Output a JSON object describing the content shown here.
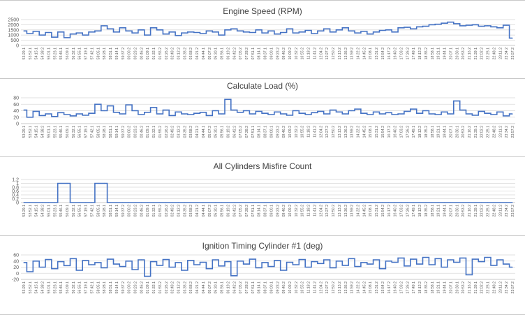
{
  "chart_data": [
    {
      "type": "line",
      "title": "Engine Speed (RPM)",
      "ylim": [
        0,
        2500
      ],
      "yticks": [
        "0",
        "500",
        "1000",
        "1500",
        "2000",
        "2500"
      ],
      "color": "#4472c4",
      "grid": true,
      "x": [
        "53:29.1",
        "53:52.1",
        "54:15.1",
        "54:38.2",
        "55:01.1",
        "55:23.1",
        "55:46.1",
        "56:09.1",
        "56:32.1",
        "56:55.1",
        "57:19.1",
        "57:42.1",
        "58:05.1",
        "58:28.1",
        "58:51.1",
        "59:14.1",
        "59:37.2",
        "00:00.2",
        "00:23.2",
        "00:46.2",
        "01:09.1",
        "01:32.1",
        "01:55.2",
        "02:26.2",
        "02:49.2",
        "03:12.2",
        "03:35.2",
        "03:58.2",
        "04:21.2",
        "04:44.1",
        "05:07.2",
        "05:30.1",
        "05:56.1",
        "06:19.2",
        "06:42.2",
        "07:05.2",
        "07:28.2",
        "07:51.1",
        "08:14.1",
        "08:37.1",
        "09:00.1",
        "09:23.2",
        "09:46.2",
        "10:09.2",
        "10:32.2",
        "10:55.2",
        "11:18.2",
        "11:41.2",
        "12:04.2",
        "12:27.2",
        "12:50.2",
        "13:13.2",
        "13:36.2",
        "13:59.2",
        "14:22.2",
        "14:45.2",
        "15:08.1",
        "15:31.2",
        "15:54.2",
        "16:17.2",
        "16:40.2",
        "17:03.2",
        "17:26.2",
        "17:49.1",
        "18:12.2",
        "18:35.2",
        "18:58.1",
        "19:21.1",
        "19:44.1",
        "20:07.1",
        "20:30.1",
        "20:53.2",
        "21:16.2",
        "21:39.1",
        "22:02.2",
        "22:25.1",
        "22:48.2",
        "23:11.2",
        "23:34.2",
        "23:57.2"
      ],
      "values": [
        1400,
        1150,
        1350,
        1000,
        1250,
        800,
        1300,
        750,
        1100,
        1200,
        1000,
        1300,
        1400,
        1900,
        1600,
        1300,
        1700,
        1400,
        1200,
        1500,
        1000,
        1700,
        1500,
        1100,
        1300,
        950,
        1200,
        1300,
        1250,
        1150,
        1400,
        1300,
        1000,
        1500,
        1600,
        1400,
        1300,
        1250,
        1500,
        1200,
        1400,
        1100,
        1250,
        1600,
        1200,
        1300,
        1450,
        1150,
        1400,
        1600,
        1300,
        1500,
        1700,
        1400,
        1200,
        1350,
        1100,
        1300,
        1450,
        1500,
        1300,
        1700,
        1750,
        1600,
        1800,
        1850,
        2000,
        2050,
        2150,
        2250,
        2100,
        1900,
        1950,
        2000,
        1850,
        1900,
        1800,
        1700,
        1950,
        700
      ]
    },
    {
      "type": "line",
      "title": "Calculate Load (%)",
      "ylim": [
        0,
        80
      ],
      "yticks": [
        "0",
        "20",
        "40",
        "60",
        "80"
      ],
      "color": "#4472c4",
      "grid": true,
      "x": [
        "53:29.1",
        "53:52.1",
        "54:15.1",
        "54:38.2",
        "55:01.1",
        "55:23.1",
        "55:46.1",
        "56:09.1",
        "56:32.1",
        "56:55.1",
        "57:19.1",
        "57:42.1",
        "58:05.1",
        "58:28.1",
        "58:51.1",
        "59:14.1",
        "59:37.2",
        "00:00.2",
        "00:23.2",
        "00:46.2",
        "01:09.1",
        "01:32.1",
        "01:55.2",
        "02:26.2",
        "02:49.2",
        "03:12.2",
        "03:35.2",
        "03:58.2",
        "04:21.2",
        "04:44.1",
        "05:07.2",
        "05:30.1",
        "05:56.1",
        "06:19.2",
        "06:42.2",
        "07:05.2",
        "07:28.2",
        "07:51.1",
        "08:14.1",
        "08:37.1",
        "09:00.1",
        "09:23.2",
        "09:46.2",
        "10:09.2",
        "10:32.2",
        "10:55.2",
        "11:18.2",
        "11:41.2",
        "12:04.2",
        "12:27.2",
        "12:50.2",
        "13:13.2",
        "13:36.2",
        "13:59.2",
        "14:22.2",
        "14:45.2",
        "15:08.1",
        "15:31.2",
        "15:54.2",
        "16:17.2",
        "16:40.2",
        "17:03.2",
        "17:26.2",
        "17:49.1",
        "18:12.2",
        "18:35.2",
        "18:58.1",
        "19:21.1",
        "19:44.1",
        "20:07.1",
        "20:30.1",
        "20:53.2",
        "21:16.2",
        "21:39.1",
        "22:02.2",
        "22:25.1",
        "22:48.2",
        "23:11.2",
        "23:34.2",
        "23:57.2"
      ],
      "values": [
        42,
        20,
        38,
        25,
        30,
        22,
        34,
        28,
        24,
        30,
        26,
        32,
        60,
        40,
        55,
        35,
        30,
        58,
        40,
        28,
        35,
        50,
        30,
        42,
        25,
        36,
        30,
        28,
        32,
        35,
        25,
        40,
        30,
        75,
        42,
        35,
        40,
        30,
        38,
        32,
        28,
        36,
        30,
        26,
        40,
        32,
        28,
        34,
        38,
        30,
        42,
        36,
        30,
        40,
        45,
        32,
        28,
        36,
        30,
        34,
        28,
        30,
        38,
        45,
        32,
        40,
        30,
        28,
        36,
        30,
        70,
        42,
        30,
        26,
        38,
        32,
        28,
        36,
        24,
        30
      ]
    },
    {
      "type": "line",
      "title": "All Cylinders Misfire Count",
      "ylim": [
        0,
        1.2
      ],
      "yticks": [
        "0",
        "0.2",
        "0.4",
        "0.6",
        "0.8",
        "1",
        "1.2"
      ],
      "color": "#4472c4",
      "grid": true,
      "x": [
        "53:29.1",
        "53:52.1",
        "54:15.1",
        "54:38.2",
        "55:01.1",
        "55:23.1",
        "55:46.1",
        "56:09.1",
        "56:32.1",
        "56:55.1",
        "57:19.1",
        "57:42.1",
        "58:05.1",
        "58:28.1",
        "58:51.1",
        "59:14.1",
        "59:37.2",
        "00:00.2",
        "00:23.2",
        "00:46.2",
        "01:09.1",
        "01:32.1",
        "01:55.2",
        "02:26.2",
        "02:49.2",
        "03:12.2",
        "03:35.2",
        "03:58.2",
        "04:21.2",
        "04:44.1",
        "05:07.2",
        "05:30.1",
        "05:56.1",
        "06:19.2",
        "06:42.2",
        "07:05.2",
        "07:28.2",
        "07:51.1",
        "08:14.1",
        "08:37.1",
        "09:00.1",
        "09:23.2",
        "09:46.2",
        "10:09.2",
        "10:32.2",
        "10:55.2",
        "11:18.2",
        "11:41.2",
        "12:04.2",
        "12:27.2",
        "12:50.2",
        "13:13.2",
        "13:36.2",
        "13:59.2",
        "14:22.2",
        "14:45.2",
        "15:08.1",
        "15:31.2",
        "15:54.2",
        "16:17.2",
        "16:40.2",
        "17:03.2",
        "17:26.2",
        "17:49.1",
        "18:12.2",
        "18:35.2",
        "18:58.1",
        "19:21.1",
        "19:44.1",
        "20:07.1",
        "20:30.1",
        "20:53.2",
        "21:16.2",
        "21:39.1",
        "22:02.2",
        "22:25.1",
        "22:48.2",
        "23:11.2",
        "23:34.2",
        "23:57.2"
      ],
      "values": [
        0,
        0,
        0,
        0,
        0,
        0,
        1,
        1,
        0,
        0,
        0,
        0,
        1,
        1,
        0,
        0,
        0,
        0,
        0,
        0,
        0,
        0,
        0,
        0,
        0,
        0,
        0,
        0,
        0,
        0,
        0,
        0,
        0,
        0,
        0,
        0,
        0,
        0,
        0,
        0,
        0,
        0,
        0,
        0,
        0,
        0,
        0,
        0,
        0,
        0,
        0,
        0,
        0,
        0,
        0,
        0,
        0,
        0,
        0,
        0,
        0,
        0,
        0,
        0,
        0,
        0,
        0,
        0,
        0,
        0,
        0,
        0,
        0,
        0,
        0,
        0,
        0,
        0,
        0,
        0
      ]
    },
    {
      "type": "line",
      "title": "Ignition Timing Cylinder #1 (deg)",
      "ylim": [
        -20,
        60
      ],
      "yticks": [
        "-20",
        "0",
        "20",
        "40",
        "60"
      ],
      "color": "#4472c4",
      "grid": true,
      "x": [
        "53:29.1",
        "53:52.1",
        "54:15.1",
        "54:38.2",
        "55:01.1",
        "55:23.1",
        "55:46.1",
        "56:09.1",
        "56:32.1",
        "56:55.1",
        "57:19.1",
        "57:42.1",
        "58:05.1",
        "58:28.1",
        "58:51.1",
        "59:14.1",
        "59:37.2",
        "00:00.2",
        "00:23.2",
        "00:46.2",
        "01:09.1",
        "01:32.1",
        "01:55.2",
        "02:26.2",
        "02:49.2",
        "03:12.2",
        "03:35.2",
        "03:58.2",
        "04:21.2",
        "04:44.1",
        "05:07.2",
        "05:30.1",
        "05:56.1",
        "06:19.2",
        "06:42.2",
        "07:05.2",
        "07:28.2",
        "07:51.1",
        "08:14.1",
        "08:37.1",
        "09:00.1",
        "09:23.2",
        "09:46.2",
        "10:09.2",
        "10:32.2",
        "10:55.2",
        "11:18.2",
        "11:41.2",
        "12:04.2",
        "12:27.2",
        "12:50.2",
        "13:13.2",
        "13:36.2",
        "13:59.2",
        "14:22.2",
        "14:45.2",
        "15:08.1",
        "15:31.2",
        "15:54.2",
        "16:17.2",
        "16:40.2",
        "17:03.2",
        "17:26.2",
        "17:49.1",
        "18:12.2",
        "18:35.2",
        "18:58.1",
        "19:21.1",
        "19:44.1",
        "20:07.1",
        "20:30.1",
        "20:53.2",
        "21:16.2",
        "21:39.1",
        "22:02.2",
        "22:25.1",
        "22:48.2",
        "23:11.2",
        "23:34.2",
        "23:57.2"
      ],
      "values": [
        35,
        5,
        40,
        20,
        45,
        15,
        38,
        25,
        48,
        10,
        42,
        28,
        35,
        18,
        46,
        30,
        22,
        40,
        12,
        44,
        -10,
        38,
        26,
        45,
        20,
        35,
        10,
        42,
        28,
        36,
        15,
        44,
        24,
        38,
        -8,
        40,
        30,
        46,
        18,
        35,
        22,
        42,
        10,
        36,
        28,
        45,
        20,
        38,
        32,
        44,
        18,
        40,
        26,
        48,
        22,
        35,
        30,
        44,
        15,
        40,
        36,
        50,
        24,
        46,
        30,
        52,
        28,
        48,
        20,
        44,
        36,
        50,
        -5,
        46,
        38,
        52,
        26,
        44,
        30,
        20
      ]
    }
  ]
}
